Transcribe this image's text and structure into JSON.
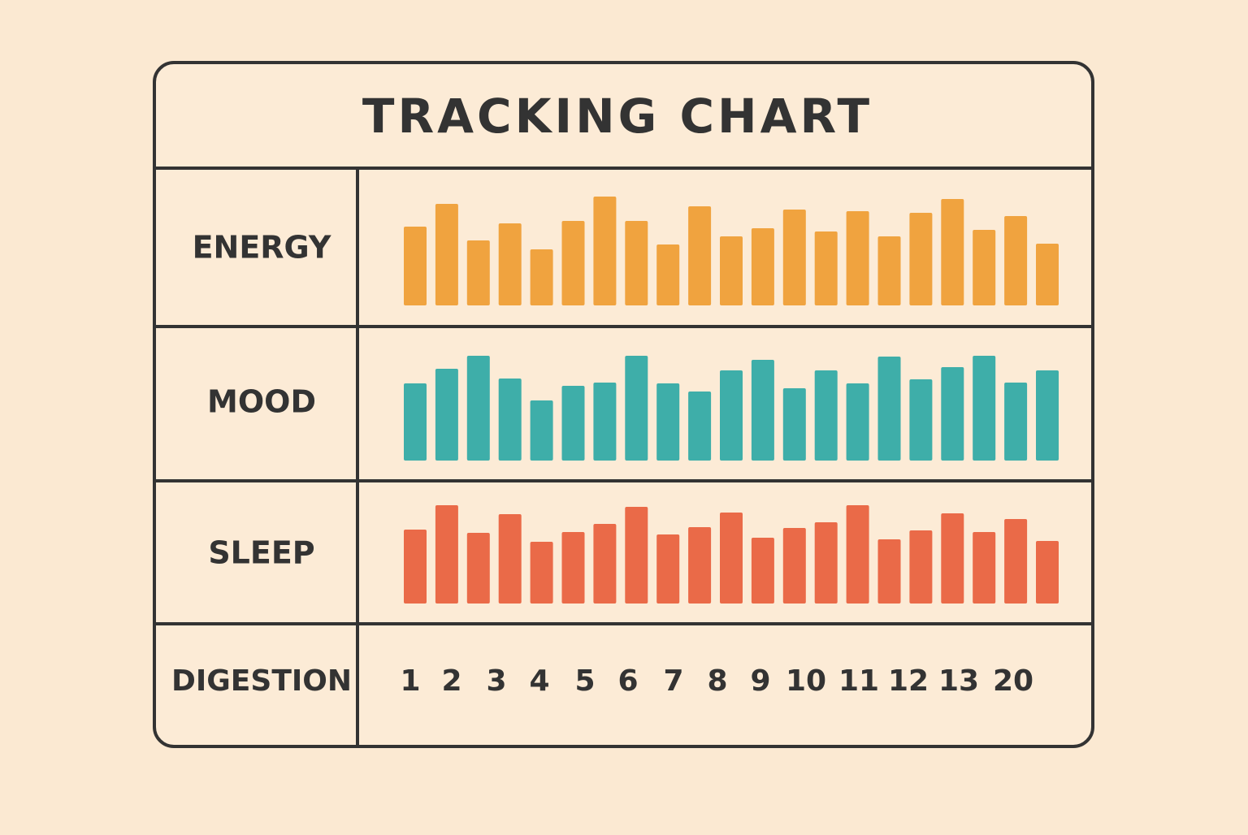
{
  "chart_data": {
    "type": "bar",
    "title": "TRACKING CHART",
    "series": [
      {
        "name": "ENERGY",
        "color": "#f0a33f",
        "values": [
          97,
          125,
          80,
          101,
          69,
          104,
          134,
          104,
          75,
          122,
          85,
          95,
          118,
          91,
          116,
          85,
          114,
          131,
          93,
          110,
          76
        ]
      },
      {
        "name": "MOOD",
        "color": "#3eaea9",
        "values": [
          95,
          113,
          129,
          101,
          74,
          92,
          96,
          129,
          95,
          85,
          111,
          124,
          89,
          111,
          95,
          128,
          100,
          115,
          129,
          96,
          111
        ]
      },
      {
        "name": "SLEEP",
        "color": "#ea6a48",
        "values": [
          91,
          121,
          87,
          110,
          76,
          88,
          98,
          119,
          85,
          94,
          112,
          81,
          93,
          100,
          121,
          79,
          90,
          111,
          88,
          104,
          77
        ]
      }
    ],
    "digestion": {
      "name": "DIGESTION",
      "labels": [
        "1",
        "2",
        "3",
        "4",
        "5",
        "6",
        "7",
        "8",
        "9",
        "10",
        "11",
        "12",
        "13",
        "20"
      ]
    }
  }
}
